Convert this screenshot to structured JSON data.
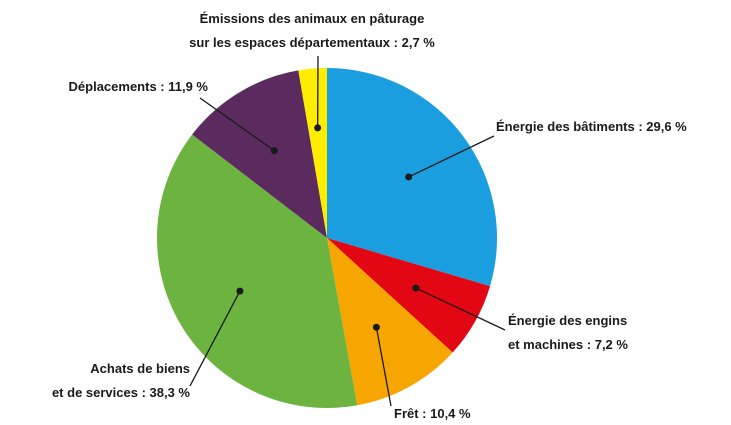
{
  "chart_data": {
    "type": "pie",
    "categories": [
      "Énergie des bâtiments",
      "Énergie des engins et machines",
      "Frêt",
      "Achats de biens et de services",
      "Déplacements",
      "Émissions des animaux en pâturage sur les espaces départementaux"
    ],
    "values": [
      29.6,
      7.2,
      10.4,
      38.3,
      11.9,
      2.7
    ],
    "value_labels": [
      ": 29,6 %",
      ": 7,2 %",
      ": 10,4 %",
      ": 38,3 %",
      ": 11,9 %",
      ": 2,7 %"
    ],
    "colors": [
      "#1a9ee0",
      "#e30613",
      "#f7a600",
      "#6db33f",
      "#5b2a5e",
      "#ffed00"
    ]
  }
}
